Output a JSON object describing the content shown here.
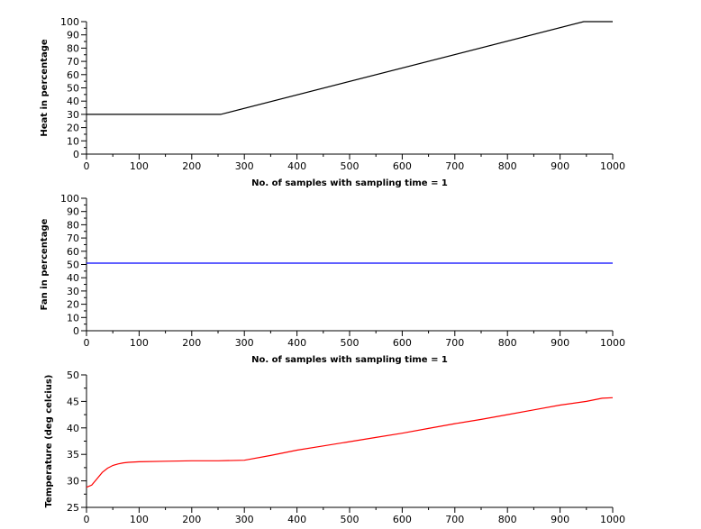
{
  "chart_data": [
    {
      "type": "line",
      "ylabel": "Heat in percentage",
      "xlabel": "No. of samples with sampling time = 1",
      "xlim": [
        0,
        1000
      ],
      "ylim": [
        0,
        100
      ],
      "xticks": [
        0,
        100,
        200,
        300,
        400,
        500,
        600,
        700,
        800,
        900,
        1000
      ],
      "yticks": [
        0,
        10,
        20,
        30,
        40,
        50,
        60,
        70,
        80,
        90,
        100
      ],
      "grid": false,
      "series": [
        {
          "color": "#000000",
          "x": [
            0,
            255,
            945,
            1000
          ],
          "y": [
            30,
            30,
            100,
            100
          ]
        }
      ]
    },
    {
      "type": "line",
      "ylabel": "Fan in percentage",
      "xlabel": "No. of samples with sampling time = 1",
      "xlim": [
        0,
        1000
      ],
      "ylim": [
        0,
        100
      ],
      "xticks": [
        0,
        100,
        200,
        300,
        400,
        500,
        600,
        700,
        800,
        900,
        1000
      ],
      "yticks": [
        0,
        10,
        20,
        30,
        40,
        50,
        60,
        70,
        80,
        90,
        100
      ],
      "grid": false,
      "series": [
        {
          "color": "#0000ff",
          "x": [
            0,
            1000
          ],
          "y": [
            51,
            51
          ]
        }
      ]
    },
    {
      "type": "line",
      "ylabel": "Temperature (deg celcius)",
      "xlabel": "",
      "xlim": [
        0,
        1000
      ],
      "ylim": [
        25,
        50
      ],
      "xticks": [
        0,
        100,
        200,
        300,
        400,
        500,
        600,
        700,
        800,
        900,
        1000
      ],
      "yticks": [
        25,
        30,
        35,
        40,
        45,
        50
      ],
      "grid": false,
      "series": [
        {
          "color": "#ff0000",
          "x": [
            0,
            10,
            20,
            30,
            40,
            50,
            60,
            70,
            80,
            100,
            150,
            200,
            250,
            300,
            350,
            400,
            450,
            500,
            550,
            600,
            650,
            700,
            750,
            800,
            850,
            900,
            950,
            980,
            1000
          ],
          "y": [
            28.8,
            29.2,
            30.4,
            31.6,
            32.4,
            32.9,
            33.2,
            33.4,
            33.5,
            33.6,
            33.7,
            33.8,
            33.8,
            33.9,
            34.8,
            35.8,
            36.6,
            37.4,
            38.2,
            39.0,
            39.9,
            40.8,
            41.6,
            42.5,
            43.4,
            44.3,
            45.0,
            45.6,
            45.7
          ]
        }
      ]
    }
  ]
}
